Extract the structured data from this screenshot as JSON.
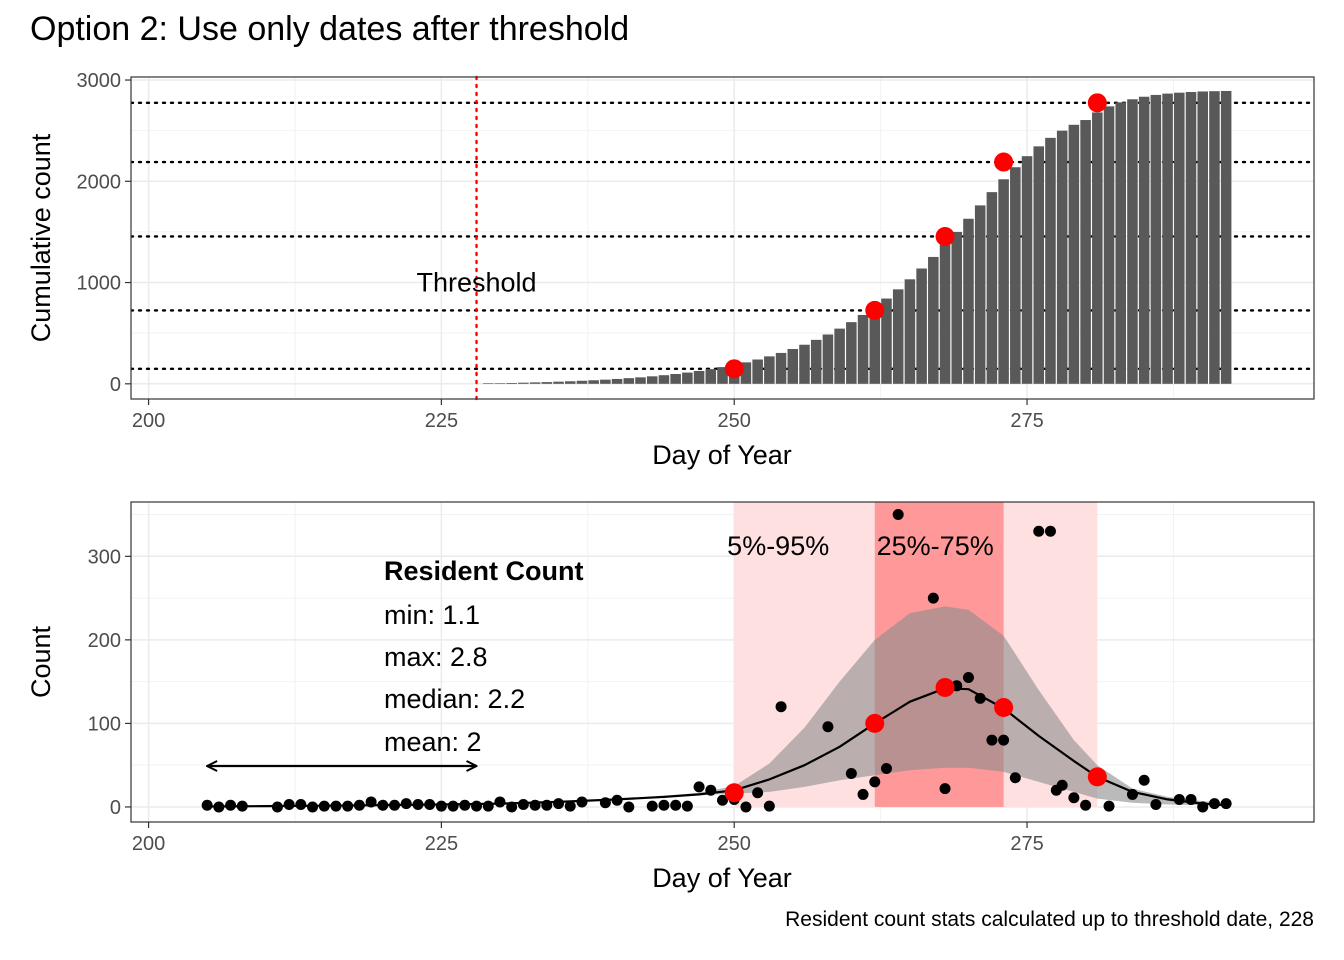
{
  "title": "Option 2: Use only dates after threshold",
  "caption": "Resident count stats calculated up to threshold date, 228",
  "colors": {
    "bar": "#595959",
    "highlight": "#ff0000",
    "inner_band": "#ff9999",
    "outer_band": "#ffe0e0",
    "ribbon": "#8c8c8c",
    "threshold_line": "#ff0000"
  },
  "chart_data": [
    {
      "type": "bar",
      "panel": "top",
      "xlabel": "Day of Year",
      "ylabel": "Cumulative count",
      "xlim": [
        198.5,
        299.5
      ],
      "ylim": [
        -150,
        3030
      ],
      "x_ticks": [
        200,
        225,
        250,
        275
      ],
      "y_ticks": [
        0,
        1000,
        2000,
        3000
      ],
      "grid": true,
      "threshold": {
        "x": 228,
        "label": "Threshold"
      },
      "x": [
        229,
        230,
        231,
        232,
        233,
        234,
        235,
        236,
        237,
        238,
        239,
        240,
        241,
        242,
        243,
        244,
        245,
        246,
        247,
        248,
        249,
        250,
        251,
        252,
        253,
        254,
        255,
        256,
        257,
        258,
        259,
        260,
        261,
        262,
        263,
        264,
        265,
        266,
        267,
        268,
        269,
        270,
        271,
        272,
        273,
        274,
        275,
        276,
        277,
        278,
        279,
        280,
        281,
        282,
        283,
        284,
        285,
        286,
        287,
        288,
        289,
        290,
        291,
        292
      ],
      "values": [
        4,
        6,
        8,
        11,
        14,
        17,
        21,
        25,
        30,
        35,
        41,
        48,
        56,
        64,
        74,
        85,
        97,
        111,
        127,
        145,
        165,
        187,
        212,
        240,
        271,
        305,
        344,
        386,
        434,
        487,
        545,
        609,
        680,
        757,
        842,
        933,
        1032,
        1139,
        1253,
        1374,
        1500,
        1630,
        1762,
        1893,
        2020,
        2139,
        2248,
        2345,
        2429,
        2500,
        2558,
        2605,
        2680,
        2740,
        2780,
        2810,
        2835,
        2853,
        2866,
        2875,
        2882,
        2887,
        2890,
        2892
      ],
      "hlines": [
        148,
        725,
        1455,
        2190,
        2775
      ],
      "highlight_points": [
        {
          "x": 250,
          "y": 148
        },
        {
          "x": 262,
          "y": 725
        },
        {
          "x": 268,
          "y": 1455
        },
        {
          "x": 273,
          "y": 2190
        },
        {
          "x": 281,
          "y": 2775
        }
      ]
    },
    {
      "type": "scatter",
      "panel": "bottom",
      "xlabel": "Day of Year",
      "ylabel": "Count",
      "xlim": [
        198.5,
        299.5
      ],
      "ylim": [
        -18,
        365
      ],
      "x_ticks": [
        200,
        225,
        250,
        275
      ],
      "y_ticks": [
        0,
        100,
        200,
        300
      ],
      "grid": true,
      "bands": [
        {
          "label": "5%-95%",
          "x0": 250,
          "x1": 281
        },
        {
          "label": "25%-75%",
          "x0": 262,
          "x1": 273
        }
      ],
      "points": [
        [
          205,
          2
        ],
        [
          206,
          0
        ],
        [
          207,
          2
        ],
        [
          208,
          1
        ],
        [
          211,
          0
        ],
        [
          212,
          3
        ],
        [
          213,
          3
        ],
        [
          214,
          0
        ],
        [
          215,
          1
        ],
        [
          216,
          1
        ],
        [
          217,
          1
        ],
        [
          218,
          2
        ],
        [
          219,
          6
        ],
        [
          220,
          2
        ],
        [
          221,
          2
        ],
        [
          222,
          4
        ],
        [
          223,
          3
        ],
        [
          224,
          3
        ],
        [
          225,
          1
        ],
        [
          226,
          1
        ],
        [
          227,
          2
        ],
        [
          228,
          1
        ],
        [
          229,
          1
        ],
        [
          230,
          6
        ],
        [
          231,
          0
        ],
        [
          232,
          3
        ],
        [
          233,
          2
        ],
        [
          234,
          2
        ],
        [
          235,
          4
        ],
        [
          236,
          1
        ],
        [
          237,
          6
        ],
        [
          239,
          5
        ],
        [
          240,
          8
        ],
        [
          241,
          0
        ],
        [
          243,
          1
        ],
        [
          244,
          2
        ],
        [
          245,
          2
        ],
        [
          246,
          1
        ],
        [
          247,
          24
        ],
        [
          248,
          20
        ],
        [
          249,
          8
        ],
        [
          250,
          9
        ],
        [
          251,
          0
        ],
        [
          252,
          17
        ],
        [
          253,
          1
        ],
        [
          254,
          120
        ],
        [
          258,
          96
        ],
        [
          260,
          40
        ],
        [
          261,
          15
        ],
        [
          262,
          30
        ],
        [
          263,
          46
        ],
        [
          264,
          350
        ],
        [
          267,
          250
        ],
        [
          268,
          22
        ],
        [
          269,
          145
        ],
        [
          270,
          155
        ],
        [
          271,
          130
        ],
        [
          272,
          80
        ],
        [
          273,
          80
        ],
        [
          274,
          35
        ],
        [
          276,
          330
        ],
        [
          277,
          330
        ],
        [
          277.5,
          20
        ],
        [
          278,
          26
        ],
        [
          279,
          11
        ],
        [
          280,
          2
        ],
        [
          282,
          1
        ],
        [
          284,
          15
        ],
        [
          285,
          32
        ],
        [
          286,
          3
        ],
        [
          288,
          9
        ],
        [
          289,
          9
        ],
        [
          290,
          0
        ],
        [
          291,
          4
        ],
        [
          292,
          4
        ]
      ],
      "fit": [
        [
          205,
          0.5
        ],
        [
          210,
          1
        ],
        [
          215,
          1.5
        ],
        [
          220,
          2.2
        ],
        [
          225,
          3
        ],
        [
          230,
          4
        ],
        [
          235,
          6
        ],
        [
          240,
          9
        ],
        [
          244,
          12
        ],
        [
          247,
          15
        ],
        [
          250,
          20
        ],
        [
          253,
          33
        ],
        [
          256,
          50
        ],
        [
          259,
          72
        ],
        [
          262,
          100
        ],
        [
          265,
          126
        ],
        [
          268,
          142
        ],
        [
          270,
          141
        ],
        [
          273,
          118
        ],
        [
          276,
          85
        ],
        [
          279,
          55
        ],
        [
          281,
          36
        ],
        [
          284,
          18
        ],
        [
          287,
          9
        ],
        [
          290,
          4
        ],
        [
          292,
          2
        ]
      ],
      "ribbon": [
        [
          244,
          12,
          13
        ],
        [
          247,
          14,
          17
        ],
        [
          250,
          16,
          25
        ],
        [
          253,
          18,
          52
        ],
        [
          256,
          24,
          95
        ],
        [
          259,
          32,
          150
        ],
        [
          262,
          38,
          200
        ],
        [
          265,
          44,
          232
        ],
        [
          268,
          47,
          240
        ],
        [
          270,
          47,
          236
        ],
        [
          273,
          42,
          205
        ],
        [
          276,
          30,
          140
        ],
        [
          279,
          18,
          80
        ],
        [
          281,
          10,
          50
        ],
        [
          284,
          5,
          22
        ],
        [
          287,
          3,
          12
        ],
        [
          290,
          2,
          7
        ],
        [
          292,
          2,
          5
        ]
      ],
      "highlight_points": [
        {
          "x": 250,
          "y": 17
        },
        {
          "x": 262,
          "y": 100
        },
        {
          "x": 268,
          "y": 143
        },
        {
          "x": 273,
          "y": 119
        },
        {
          "x": 281,
          "y": 36
        }
      ],
      "arrow": {
        "x0": 205,
        "x1": 228,
        "y": 49
      },
      "annotation": {
        "heading": "Resident Count",
        "lines": [
          "min: 1.1",
          "max: 2.8",
          "median: 2.2",
          "mean: 2"
        ]
      }
    }
  ]
}
